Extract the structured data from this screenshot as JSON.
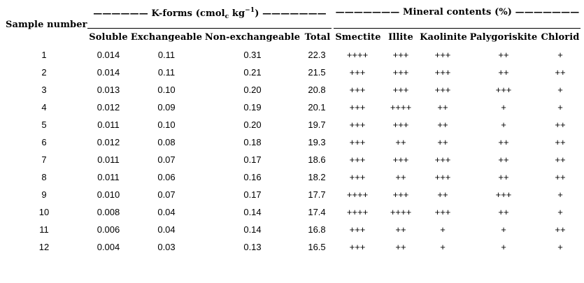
{
  "table": {
    "row_header": "Sample number",
    "groups": [
      {
        "title_prefix": "—————— K-forms (cmol",
        "title_sub": "c",
        "title_mid": " kg",
        "title_sup": "−1",
        "title_suffix": ") ———————"
      },
      {
        "title": "——————— Mineral contents (%) ———————"
      }
    ],
    "columns": [
      "Soluble",
      "Exchangeable",
      "Non-exchangeable",
      "Total",
      "Smectite",
      "Illite",
      "Kaolinite",
      "Palygoriskite",
      "Chlorid"
    ],
    "rows": [
      [
        "1",
        "0.014",
        "0.11",
        "0.31",
        "22.3",
        "++++",
        "+++",
        "+++",
        "++",
        "+"
      ],
      [
        "2",
        "0.014",
        "0.11",
        "0.21",
        "21.5",
        "+++",
        "+++",
        "+++",
        "++",
        "++"
      ],
      [
        "3",
        "0.013",
        "0.10",
        "0.20",
        "20.8",
        "+++",
        "+++",
        "+++",
        "+++",
        "+"
      ],
      [
        "4",
        "0.012",
        "0.09",
        "0.19",
        "20.1",
        "+++",
        "++++",
        "++",
        "+",
        "+"
      ],
      [
        "5",
        "0.011",
        "0.10",
        "0.20",
        "19.7",
        "+++",
        "+++",
        "++",
        "+",
        "++"
      ],
      [
        "6",
        "0.012",
        "0.08",
        "0.18",
        "19.3",
        "+++",
        "++",
        "++",
        "++",
        "++"
      ],
      [
        "7",
        "0.011",
        "0.07",
        "0.17",
        "18.6",
        "+++",
        "+++",
        "+++",
        "++",
        "++"
      ],
      [
        "8",
        "0.011",
        "0.06",
        "0.16",
        "18.2",
        "+++",
        "++",
        "+++",
        "++",
        "++"
      ],
      [
        "9",
        "0.010",
        "0.07",
        "0.17",
        "17.7",
        "++++",
        "+++",
        "++",
        "+++",
        "+"
      ],
      [
        "10",
        "0.008",
        "0.04",
        "0.14",
        "17.4",
        "++++",
        "++++",
        "+++",
        "++",
        "+"
      ],
      [
        "11",
        "0.006",
        "0.04",
        "0.14",
        "16.8",
        "+++",
        "++",
        "+",
        "+",
        "++"
      ],
      [
        "12",
        "0.004",
        "0.03",
        "0.13",
        "16.5",
        "+++",
        "++",
        "+",
        "+",
        "+"
      ]
    ]
  }
}
